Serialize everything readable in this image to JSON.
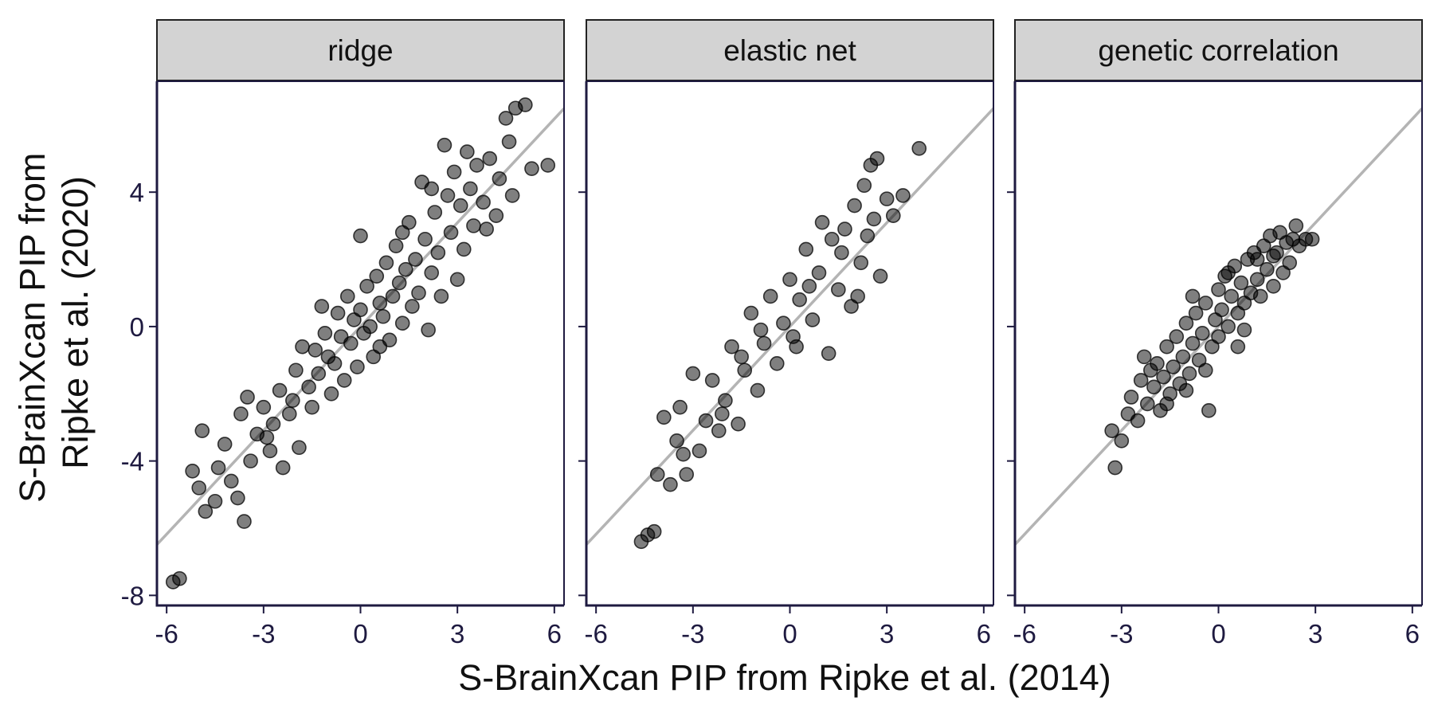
{
  "figure": {
    "xlabel": "S-BrainXcan PIP from Ripke et al. (2014)",
    "ylabel_lines": [
      "S-BrainXcan PIP from",
      "Ripke et al. (2020)"
    ]
  },
  "colors": {
    "point": "#000000",
    "reference_line": "#b4b4b4",
    "strip_fill": "#d3d3d3",
    "frame": "#1e1a40",
    "tick_text": "#1e1a40"
  },
  "chart_data": [
    {
      "type": "scatter",
      "panel": "ridge",
      "xlim": [
        -6.3,
        6.3
      ],
      "ylim": [
        -8.3,
        7.3
      ],
      "xticks": [
        -6,
        -3,
        0,
        3,
        6
      ],
      "xtick_labels": [
        "-6",
        "-3",
        "0",
        "3",
        "6"
      ],
      "yticks": [
        -8,
        -4,
        0,
        4
      ],
      "ytick_labels": [
        "-8",
        "-4",
        "0",
        "4"
      ],
      "reference_line": {
        "slope": 1.03,
        "intercept": 0
      },
      "points": [
        {
          "x": -5.8,
          "y": -7.6
        },
        {
          "x": -5.6,
          "y": -7.5
        },
        {
          "x": -5.2,
          "y": -4.3
        },
        {
          "x": -5.0,
          "y": -4.8
        },
        {
          "x": -4.9,
          "y": -3.1
        },
        {
          "x": -4.8,
          "y": -5.5
        },
        {
          "x": -4.5,
          "y": -5.2
        },
        {
          "x": -4.4,
          "y": -4.2
        },
        {
          "x": -4.2,
          "y": -3.5
        },
        {
          "x": -4.0,
          "y": -4.6
        },
        {
          "x": -3.8,
          "y": -5.1
        },
        {
          "x": -3.7,
          "y": -2.6
        },
        {
          "x": -3.6,
          "y": -5.8
        },
        {
          "x": -3.5,
          "y": -2.1
        },
        {
          "x": -3.4,
          "y": -4.0
        },
        {
          "x": -3.2,
          "y": -3.2
        },
        {
          "x": -3.0,
          "y": -2.4
        },
        {
          "x": -2.8,
          "y": -3.7
        },
        {
          "x": -2.7,
          "y": -2.9
        },
        {
          "x": -2.5,
          "y": -1.9
        },
        {
          "x": -2.4,
          "y": -4.2
        },
        {
          "x": -2.2,
          "y": -2.6
        },
        {
          "x": -2.0,
          "y": -1.3
        },
        {
          "x": -1.9,
          "y": -3.6
        },
        {
          "x": -1.8,
          "y": -0.6
        },
        {
          "x": -1.6,
          "y": -1.8
        },
        {
          "x": -1.5,
          "y": -2.4
        },
        {
          "x": -1.4,
          "y": -0.7
        },
        {
          "x": -1.3,
          "y": -1.4
        },
        {
          "x": -1.2,
          "y": 0.6
        },
        {
          "x": -1.0,
          "y": -0.9
        },
        {
          "x": -0.9,
          "y": -2.0
        },
        {
          "x": -0.8,
          "y": -1.1
        },
        {
          "x": -0.7,
          "y": 0.4
        },
        {
          "x": -0.6,
          "y": -0.3
        },
        {
          "x": -0.5,
          "y": -1.6
        },
        {
          "x": -0.4,
          "y": 0.9
        },
        {
          "x": -0.3,
          "y": -0.5
        },
        {
          "x": -0.2,
          "y": 0.2
        },
        {
          "x": -0.1,
          "y": -1.2
        },
        {
          "x": 0.0,
          "y": 0.5
        },
        {
          "x": 0.0,
          "y": 2.7
        },
        {
          "x": 0.1,
          "y": -0.2
        },
        {
          "x": 0.2,
          "y": 1.2
        },
        {
          "x": 0.3,
          "y": 0.0
        },
        {
          "x": 0.4,
          "y": -0.9
        },
        {
          "x": 0.5,
          "y": 1.5
        },
        {
          "x": 0.6,
          "y": 0.7
        },
        {
          "x": 0.7,
          "y": 0.3
        },
        {
          "x": 0.8,
          "y": 1.9
        },
        {
          "x": 0.9,
          "y": -0.4
        },
        {
          "x": 1.0,
          "y": 0.9
        },
        {
          "x": 1.1,
          "y": 2.4
        },
        {
          "x": 1.2,
          "y": 1.3
        },
        {
          "x": 1.3,
          "y": 0.1
        },
        {
          "x": 1.4,
          "y": 1.7
        },
        {
          "x": 1.5,
          "y": 3.1
        },
        {
          "x": 1.6,
          "y": 0.6
        },
        {
          "x": 1.7,
          "y": 2.0
        },
        {
          "x": 1.8,
          "y": 1.0
        },
        {
          "x": 1.9,
          "y": 4.3
        },
        {
          "x": 2.0,
          "y": 2.6
        },
        {
          "x": 2.1,
          "y": -0.1
        },
        {
          "x": 2.2,
          "y": 1.6
        },
        {
          "x": 2.3,
          "y": 3.4
        },
        {
          "x": 2.4,
          "y": 2.2
        },
        {
          "x": 2.5,
          "y": 0.9
        },
        {
          "x": 2.6,
          "y": 5.4
        },
        {
          "x": 2.7,
          "y": 3.9
        },
        {
          "x": 2.8,
          "y": 2.8
        },
        {
          "x": 2.9,
          "y": 4.6
        },
        {
          "x": 3.0,
          "y": 1.4
        },
        {
          "x": 3.1,
          "y": 3.6
        },
        {
          "x": 3.2,
          "y": 2.3
        },
        {
          "x": 3.3,
          "y": 5.2
        },
        {
          "x": 3.4,
          "y": 4.1
        },
        {
          "x": 3.5,
          "y": 3.0
        },
        {
          "x": 3.6,
          "y": 4.8
        },
        {
          "x": 3.8,
          "y": 3.7
        },
        {
          "x": 3.9,
          "y": 2.9
        },
        {
          "x": 4.0,
          "y": 5.0
        },
        {
          "x": 4.2,
          "y": 3.3
        },
        {
          "x": 4.3,
          "y": 4.4
        },
        {
          "x": 4.5,
          "y": 6.2
        },
        {
          "x": 4.6,
          "y": 5.5
        },
        {
          "x": 4.7,
          "y": 3.9
        },
        {
          "x": 4.8,
          "y": 6.5
        },
        {
          "x": 5.1,
          "y": 6.6
        },
        {
          "x": 5.3,
          "y": 4.7
        },
        {
          "x": 5.8,
          "y": 4.8
        },
        {
          "x": -2.9,
          "y": -3.3
        },
        {
          "x": -2.1,
          "y": -2.2
        },
        {
          "x": -1.1,
          "y": -0.2
        },
        {
          "x": 0.6,
          "y": -0.6
        },
        {
          "x": 1.3,
          "y": 2.8
        },
        {
          "x": 2.2,
          "y": 4.1
        }
      ]
    },
    {
      "type": "scatter",
      "panel": "elastic net",
      "xlim": [
        -6.3,
        6.3
      ],
      "ylim": [
        -8.3,
        7.3
      ],
      "xticks": [
        -6,
        -3,
        0,
        3,
        6
      ],
      "xtick_labels": [
        "-6",
        "-3",
        "0",
        "3",
        "6"
      ],
      "yticks": [
        -8,
        -4,
        0,
        4
      ],
      "ytick_labels": [],
      "reference_line": {
        "slope": 1.03,
        "intercept": 0
      },
      "points": [
        {
          "x": -4.6,
          "y": -6.4
        },
        {
          "x": -4.4,
          "y": -6.2
        },
        {
          "x": -4.2,
          "y": -6.1
        },
        {
          "x": -4.1,
          "y": -4.4
        },
        {
          "x": -3.9,
          "y": -2.7
        },
        {
          "x": -3.7,
          "y": -4.7
        },
        {
          "x": -3.5,
          "y": -3.4
        },
        {
          "x": -3.4,
          "y": -2.4
        },
        {
          "x": -3.2,
          "y": -4.4
        },
        {
          "x": -3.0,
          "y": -1.4
        },
        {
          "x": -2.8,
          "y": -3.7
        },
        {
          "x": -2.6,
          "y": -2.8
        },
        {
          "x": -2.4,
          "y": -1.6
        },
        {
          "x": -2.2,
          "y": -3.1
        },
        {
          "x": -2.0,
          "y": -2.2
        },
        {
          "x": -1.8,
          "y": -0.6
        },
        {
          "x": -1.6,
          "y": -2.9
        },
        {
          "x": -1.4,
          "y": -1.3
        },
        {
          "x": -1.2,
          "y": 0.4
        },
        {
          "x": -1.0,
          "y": -1.9
        },
        {
          "x": -0.8,
          "y": -0.5
        },
        {
          "x": -0.6,
          "y": 0.9
        },
        {
          "x": -0.4,
          "y": -1.1
        },
        {
          "x": -0.2,
          "y": 0.1
        },
        {
          "x": 0.0,
          "y": 1.4
        },
        {
          "x": 0.2,
          "y": -0.6
        },
        {
          "x": 0.3,
          "y": 0.8
        },
        {
          "x": 0.5,
          "y": 2.3
        },
        {
          "x": 0.7,
          "y": 0.2
        },
        {
          "x": 0.9,
          "y": 1.6
        },
        {
          "x": 1.0,
          "y": 3.1
        },
        {
          "x": 1.2,
          "y": -0.8
        },
        {
          "x": 1.3,
          "y": 2.6
        },
        {
          "x": 1.5,
          "y": 1.1
        },
        {
          "x": 1.7,
          "y": 2.9
        },
        {
          "x": 1.9,
          "y": 0.6
        },
        {
          "x": 2.0,
          "y": 3.6
        },
        {
          "x": 2.2,
          "y": 1.9
        },
        {
          "x": 2.3,
          "y": 4.2
        },
        {
          "x": 2.4,
          "y": 2.7
        },
        {
          "x": 2.5,
          "y": 4.8
        },
        {
          "x": 2.6,
          "y": 3.2
        },
        {
          "x": 2.7,
          "y": 5.0
        },
        {
          "x": 2.8,
          "y": 1.5
        },
        {
          "x": 3.0,
          "y": 3.8
        },
        {
          "x": 3.2,
          "y": 3.3
        },
        {
          "x": 3.5,
          "y": 3.9
        },
        {
          "x": 4.0,
          "y": 5.3
        },
        {
          "x": -3.3,
          "y": -3.8
        },
        {
          "x": -2.1,
          "y": -2.6
        },
        {
          "x": -0.9,
          "y": -0.1
        },
        {
          "x": 0.6,
          "y": 1.2
        },
        {
          "x": 1.6,
          "y": 2.2
        },
        {
          "x": -1.5,
          "y": -0.9
        },
        {
          "x": 0.1,
          "y": -0.3
        },
        {
          "x": 2.1,
          "y": 0.9
        }
      ]
    },
    {
      "type": "scatter",
      "panel": "genetic correlation",
      "xlim": [
        -6.3,
        6.3
      ],
      "ylim": [
        -8.3,
        7.3
      ],
      "xticks": [
        -6,
        -3,
        0,
        3,
        6
      ],
      "xtick_labels": [
        "-6",
        "-3",
        "0",
        "3",
        "6"
      ],
      "yticks": [
        -8,
        -4,
        0,
        4
      ],
      "ytick_labels": [],
      "reference_line": {
        "slope": 1.03,
        "intercept": 0
      },
      "points": [
        {
          "x": -3.3,
          "y": -3.1
        },
        {
          "x": -3.2,
          "y": -4.2
        },
        {
          "x": -3.0,
          "y": -3.4
        },
        {
          "x": -2.8,
          "y": -2.6
        },
        {
          "x": -2.7,
          "y": -2.1
        },
        {
          "x": -2.5,
          "y": -2.8
        },
        {
          "x": -2.4,
          "y": -1.6
        },
        {
          "x": -2.3,
          "y": -0.9
        },
        {
          "x": -2.2,
          "y": -2.3
        },
        {
          "x": -2.0,
          "y": -1.8
        },
        {
          "x": -1.9,
          "y": -1.1
        },
        {
          "x": -1.8,
          "y": -2.5
        },
        {
          "x": -1.7,
          "y": -1.5
        },
        {
          "x": -1.6,
          "y": -0.6
        },
        {
          "x": -1.5,
          "y": -2.0
        },
        {
          "x": -1.4,
          "y": -1.2
        },
        {
          "x": -1.3,
          "y": -0.3
        },
        {
          "x": -1.2,
          "y": -1.7
        },
        {
          "x": -1.1,
          "y": -0.9
        },
        {
          "x": -1.0,
          "y": 0.1
        },
        {
          "x": -0.9,
          "y": -1.4
        },
        {
          "x": -0.8,
          "y": -0.5
        },
        {
          "x": -0.7,
          "y": 0.4
        },
        {
          "x": -0.6,
          "y": -1.0
        },
        {
          "x": -0.5,
          "y": -0.2
        },
        {
          "x": -0.4,
          "y": 0.7
        },
        {
          "x": -0.3,
          "y": -2.5
        },
        {
          "x": -0.2,
          "y": -0.6
        },
        {
          "x": -0.1,
          "y": 0.2
        },
        {
          "x": 0.0,
          "y": 1.1
        },
        {
          "x": 0.0,
          "y": -0.3
        },
        {
          "x": 0.1,
          "y": 0.5
        },
        {
          "x": 0.2,
          "y": 1.5
        },
        {
          "x": 0.3,
          "y": 0.0
        },
        {
          "x": 0.4,
          "y": 0.9
        },
        {
          "x": 0.5,
          "y": 1.8
        },
        {
          "x": 0.6,
          "y": 0.4
        },
        {
          "x": 0.7,
          "y": 1.3
        },
        {
          "x": 0.8,
          "y": 0.7
        },
        {
          "x": 0.9,
          "y": 2.0
        },
        {
          "x": 1.0,
          "y": 1.0
        },
        {
          "x": 1.1,
          "y": 2.2
        },
        {
          "x": 1.2,
          "y": 1.4
        },
        {
          "x": 1.3,
          "y": 0.9
        },
        {
          "x": 1.4,
          "y": 2.4
        },
        {
          "x": 1.5,
          "y": 1.7
        },
        {
          "x": 1.6,
          "y": 2.7
        },
        {
          "x": 1.7,
          "y": 1.2
        },
        {
          "x": 1.8,
          "y": 2.2
        },
        {
          "x": 1.9,
          "y": 2.8
        },
        {
          "x": 2.0,
          "y": 1.6
        },
        {
          "x": 2.1,
          "y": 2.5
        },
        {
          "x": 2.2,
          "y": 1.9
        },
        {
          "x": 2.3,
          "y": 2.6
        },
        {
          "x": 2.4,
          "y": 3.0
        },
        {
          "x": 2.5,
          "y": 2.4
        },
        {
          "x": 2.7,
          "y": 2.6
        },
        {
          "x": 2.9,
          "y": 2.6
        },
        {
          "x": -1.0,
          "y": -1.9
        },
        {
          "x": -0.4,
          "y": -1.3
        },
        {
          "x": 0.3,
          "y": 1.6
        },
        {
          "x": 0.8,
          "y": -0.1
        },
        {
          "x": 1.2,
          "y": 2.0
        },
        {
          "x": -1.6,
          "y": -2.3
        },
        {
          "x": -0.8,
          "y": 0.9
        },
        {
          "x": 0.6,
          "y": -0.6
        },
        {
          "x": 1.7,
          "y": 2.1
        },
        {
          "x": -2.1,
          "y": -1.3
        }
      ]
    }
  ]
}
